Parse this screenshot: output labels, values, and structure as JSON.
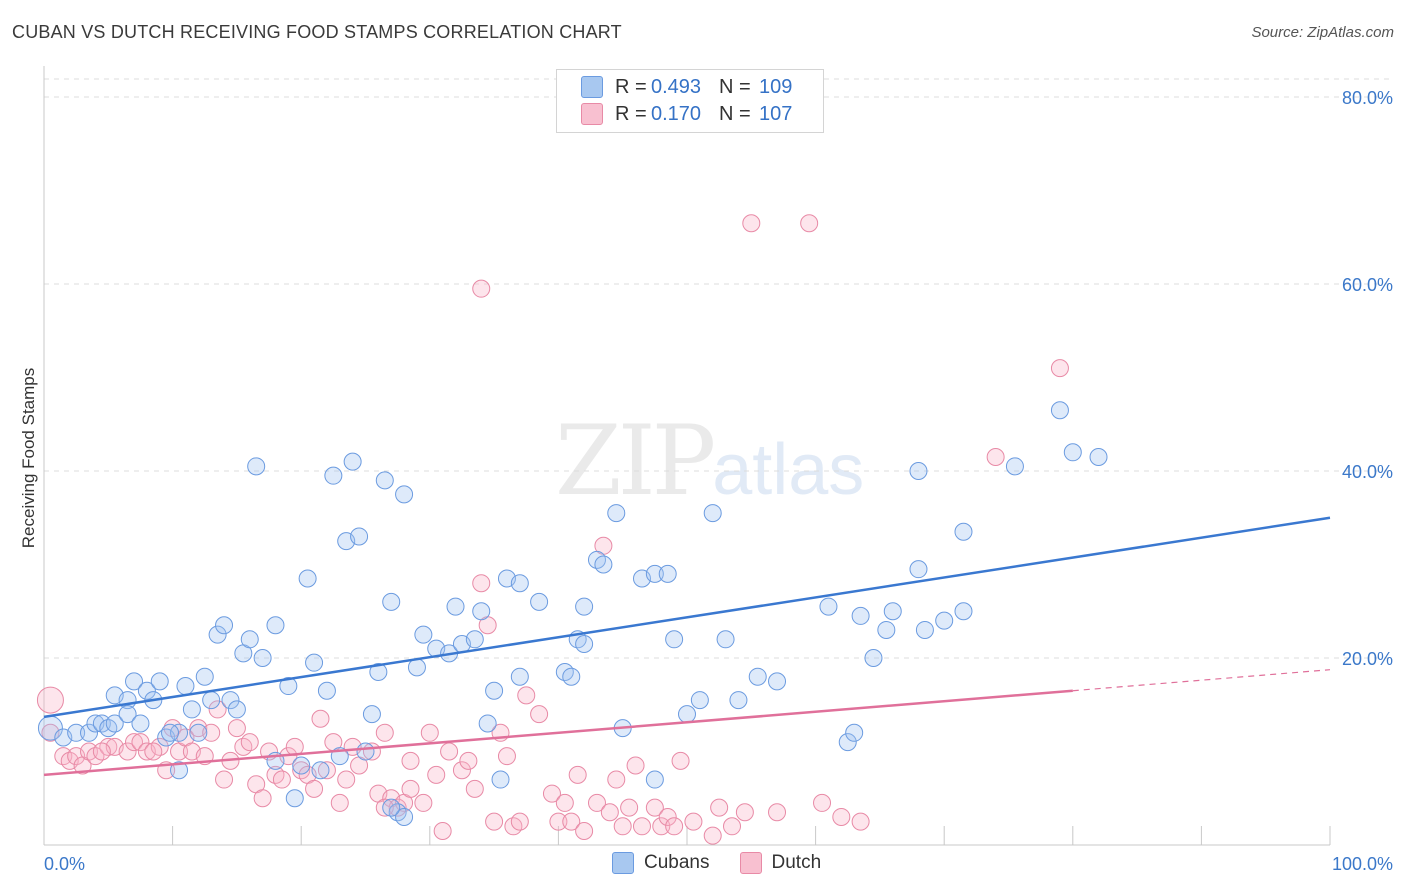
{
  "header": {
    "title": "CUBAN VS DUTCH RECEIVING FOOD STAMPS CORRELATION CHART",
    "source": "Source: ZipAtlas.com"
  },
  "watermark": {
    "zip": "ZIP",
    "atlas": "atlas"
  },
  "legend": {
    "rows": [
      {
        "r_label": "R =",
        "r_value": "0.493",
        "n_label": "N =",
        "n_value": "109",
        "color": "#a8c8f0",
        "border": "#6b9be0"
      },
      {
        "r_label": "R =",
        "r_value": "0.170",
        "n_label": "N =",
        "n_value": "107",
        "color": "#f8c0d0",
        "border": "#e88aa6"
      }
    ]
  },
  "bottom_legend": [
    {
      "label": "Cubans",
      "color": "#a8c8f0",
      "border": "#6b9be0"
    },
    {
      "label": "Dutch",
      "color": "#f8c0d0",
      "border": "#e88aa6"
    }
  ],
  "chart_data": {
    "type": "scatter",
    "title": "CUBAN VS DUTCH RECEIVING FOOD STAMPS CORRELATION CHART",
    "xlabel": "",
    "ylabel": "Receiving Food Stamps",
    "xlim": [
      0,
      100
    ],
    "ylim": [
      0,
      85
    ],
    "x_tick_labels": [
      "0.0%",
      "100.0%"
    ],
    "y_ticks": [
      20,
      40,
      60,
      80
    ],
    "y_tick_labels": [
      "20.0%",
      "40.0%",
      "60.0%",
      "80.0%"
    ],
    "grid": "horizontal dashed",
    "colors": {
      "cubans": "#6b9be0",
      "cubans_line": "#3a78d0",
      "dutch": "#e88aa6",
      "dutch_line": "#e0709a"
    },
    "series": [
      {
        "name": "Cubans",
        "trend": {
          "x": [
            0,
            100
          ],
          "y": [
            13.7,
            35.0
          ]
        },
        "points": [
          [
            0.5,
            12.5
          ],
          [
            1.5,
            11.5
          ],
          [
            2.5,
            12.0
          ],
          [
            3.5,
            12.0
          ],
          [
            4.0,
            13.0
          ],
          [
            4.5,
            13.0
          ],
          [
            5.0,
            12.5
          ],
          [
            5.5,
            13.0
          ],
          [
            5.5,
            16.0
          ],
          [
            6.5,
            15.5
          ],
          [
            6.5,
            14.0
          ],
          [
            7.0,
            17.5
          ],
          [
            7.5,
            13.0
          ],
          [
            8.0,
            16.5
          ],
          [
            8.5,
            15.5
          ],
          [
            9.0,
            17.5
          ],
          [
            9.5,
            11.5
          ],
          [
            10.5,
            12.0
          ],
          [
            10.5,
            8.0
          ],
          [
            11.0,
            17.0
          ],
          [
            11.5,
            14.5
          ],
          [
            12.0,
            12.0
          ],
          [
            12.5,
            18.0
          ],
          [
            13.0,
            15.5
          ],
          [
            13.5,
            22.5
          ],
          [
            14.0,
            23.5
          ],
          [
            14.5,
            15.5
          ],
          [
            15.5,
            20.5
          ],
          [
            16.0,
            22.0
          ],
          [
            16.5,
            40.5
          ],
          [
            17.0,
            20.0
          ],
          [
            18.0,
            9.0
          ],
          [
            18.0,
            23.5
          ],
          [
            19.0,
            17.0
          ],
          [
            19.5,
            5.0
          ],
          [
            20.0,
            8.5
          ],
          [
            20.5,
            28.5
          ],
          [
            21.0,
            19.5
          ],
          [
            21.5,
            8.0
          ],
          [
            22.0,
            16.5
          ],
          [
            22.5,
            39.5
          ],
          [
            23.5,
            32.5
          ],
          [
            24.0,
            41.0
          ],
          [
            24.5,
            33.0
          ],
          [
            25.0,
            10.0
          ],
          [
            25.5,
            14.0
          ],
          [
            26.0,
            18.5
          ],
          [
            26.5,
            39.0
          ],
          [
            27.0,
            26.0
          ],
          [
            27.5,
            3.5
          ],
          [
            28.0,
            37.5
          ],
          [
            28.0,
            3.0
          ],
          [
            29.0,
            19.0
          ],
          [
            29.5,
            22.5
          ],
          [
            30.5,
            21.0
          ],
          [
            31.5,
            20.5
          ],
          [
            32.0,
            25.5
          ],
          [
            32.5,
            21.5
          ],
          [
            33.5,
            22.0
          ],
          [
            34.0,
            25.0
          ],
          [
            34.5,
            13.0
          ],
          [
            35.0,
            16.5
          ],
          [
            35.5,
            7.0
          ],
          [
            36.0,
            28.5
          ],
          [
            37.0,
            28.0
          ],
          [
            37.0,
            18.0
          ],
          [
            38.5,
            26.0
          ],
          [
            40.5,
            18.5
          ],
          [
            41.0,
            18.0
          ],
          [
            41.5,
            22.0
          ],
          [
            42.0,
            21.5
          ],
          [
            42.0,
            25.5
          ],
          [
            43.0,
            30.5
          ],
          [
            43.5,
            30.0
          ],
          [
            44.5,
            35.5
          ],
          [
            45.0,
            12.5
          ],
          [
            46.5,
            28.5
          ],
          [
            47.5,
            7.0
          ],
          [
            47.5,
            29.0
          ],
          [
            48.5,
            29.0
          ],
          [
            49.0,
            22.0
          ],
          [
            50.0,
            14.0
          ],
          [
            51.0,
            15.5
          ],
          [
            52.0,
            35.5
          ],
          [
            53.0,
            22.0
          ],
          [
            54.0,
            15.5
          ],
          [
            55.5,
            18.0
          ],
          [
            57.0,
            17.5
          ],
          [
            61.0,
            25.5
          ],
          [
            62.5,
            11.0
          ],
          [
            63.0,
            12.0
          ],
          [
            63.5,
            24.5
          ],
          [
            64.5,
            20.0
          ],
          [
            65.5,
            23.0
          ],
          [
            66.0,
            25.0
          ],
          [
            68.0,
            40.0
          ],
          [
            68.5,
            23.0
          ],
          [
            68.0,
            29.5
          ],
          [
            70.0,
            24.0
          ],
          [
            71.5,
            25.0
          ],
          [
            71.5,
            33.5
          ],
          [
            75.5,
            40.5
          ],
          [
            79.0,
            46.5
          ],
          [
            80.0,
            42.0
          ],
          [
            82.0,
            41.5
          ],
          [
            15.0,
            14.5
          ],
          [
            23.0,
            9.5
          ],
          [
            27.0,
            4.0
          ],
          [
            9.8,
            12.0
          ]
        ]
      },
      {
        "name": "Dutch",
        "trend": {
          "x": [
            0,
            80
          ],
          "y": [
            7.5,
            16.5
          ]
        },
        "points": [
          [
            0.5,
            15.5
          ],
          [
            0.5,
            12.0
          ],
          [
            1.5,
            9.5
          ],
          [
            2.0,
            9.0
          ],
          [
            2.5,
            9.5
          ],
          [
            3.0,
            8.5
          ],
          [
            3.5,
            10.0
          ],
          [
            4.0,
            9.5
          ],
          [
            5.0,
            10.5
          ],
          [
            5.5,
            10.5
          ],
          [
            6.5,
            10.0
          ],
          [
            7.0,
            11.0
          ],
          [
            7.5,
            11.0
          ],
          [
            8.0,
            10.0
          ],
          [
            9.0,
            10.5
          ],
          [
            9.5,
            8.0
          ],
          [
            10.0,
            12.5
          ],
          [
            10.5,
            10.0
          ],
          [
            11.0,
            11.5
          ],
          [
            11.5,
            10.0
          ],
          [
            12.0,
            12.5
          ],
          [
            12.5,
            9.5
          ],
          [
            13.0,
            12.0
          ],
          [
            13.5,
            14.5
          ],
          [
            14.0,
            7.0
          ],
          [
            14.5,
            9.0
          ],
          [
            15.0,
            12.5
          ],
          [
            15.5,
            10.5
          ],
          [
            16.0,
            11.0
          ],
          [
            16.5,
            6.5
          ],
          [
            17.0,
            5.0
          ],
          [
            17.5,
            10.0
          ],
          [
            18.0,
            7.5
          ],
          [
            18.5,
            7.0
          ],
          [
            19.0,
            9.5
          ],
          [
            19.5,
            10.5
          ],
          [
            20.0,
            8.0
          ],
          [
            20.5,
            7.5
          ],
          [
            21.0,
            6.0
          ],
          [
            21.5,
            13.5
          ],
          [
            22.0,
            8.0
          ],
          [
            22.5,
            11.0
          ],
          [
            23.0,
            4.5
          ],
          [
            23.5,
            7.0
          ],
          [
            24.0,
            10.5
          ],
          [
            24.5,
            8.5
          ],
          [
            25.5,
            10.0
          ],
          [
            26.0,
            5.5
          ],
          [
            26.5,
            12.0
          ],
          [
            27.0,
            5.0
          ],
          [
            27.5,
            4.0
          ],
          [
            28.0,
            4.5
          ],
          [
            28.5,
            6.0
          ],
          [
            28.5,
            9.0
          ],
          [
            29.5,
            4.5
          ],
          [
            30.0,
            12.0
          ],
          [
            30.5,
            7.5
          ],
          [
            31.0,
            1.5
          ],
          [
            31.5,
            10.0
          ],
          [
            32.5,
            8.0
          ],
          [
            33.0,
            9.0
          ],
          [
            33.5,
            6.0
          ],
          [
            34.0,
            28.0
          ],
          [
            34.5,
            23.5
          ],
          [
            35.0,
            2.5
          ],
          [
            35.5,
            12.0
          ],
          [
            36.0,
            9.5
          ],
          [
            36.5,
            2.0
          ],
          [
            37.0,
            2.5
          ],
          [
            37.5,
            16.0
          ],
          [
            38.5,
            14.0
          ],
          [
            39.5,
            5.5
          ],
          [
            40.0,
            2.5
          ],
          [
            40.5,
            4.5
          ],
          [
            41.0,
            2.5
          ],
          [
            41.5,
            7.5
          ],
          [
            42.0,
            1.5
          ],
          [
            43.0,
            4.5
          ],
          [
            43.5,
            32.0
          ],
          [
            44.0,
            3.5
          ],
          [
            44.5,
            7.0
          ],
          [
            45.0,
            2.0
          ],
          [
            45.5,
            4.0
          ],
          [
            46.0,
            8.5
          ],
          [
            46.5,
            2.0
          ],
          [
            47.5,
            4.0
          ],
          [
            48.0,
            2.0
          ],
          [
            48.5,
            3.0
          ],
          [
            49.0,
            2.0
          ],
          [
            49.5,
            9.0
          ],
          [
            50.5,
            2.5
          ],
          [
            52.0,
            1.0
          ],
          [
            52.5,
            4.0
          ],
          [
            54.5,
            3.5
          ],
          [
            55.0,
            66.5
          ],
          [
            59.5,
            66.5
          ],
          [
            34.0,
            59.5
          ],
          [
            62.0,
            3.0
          ],
          [
            63.5,
            2.5
          ],
          [
            74.0,
            41.5
          ],
          [
            79.0,
            51.0
          ],
          [
            26.5,
            4.0
          ],
          [
            53.5,
            2.0
          ],
          [
            60.5,
            4.5
          ],
          [
            57.0,
            3.5
          ],
          [
            8.5,
            10.0
          ],
          [
            4.5,
            10.0
          ]
        ]
      }
    ]
  }
}
